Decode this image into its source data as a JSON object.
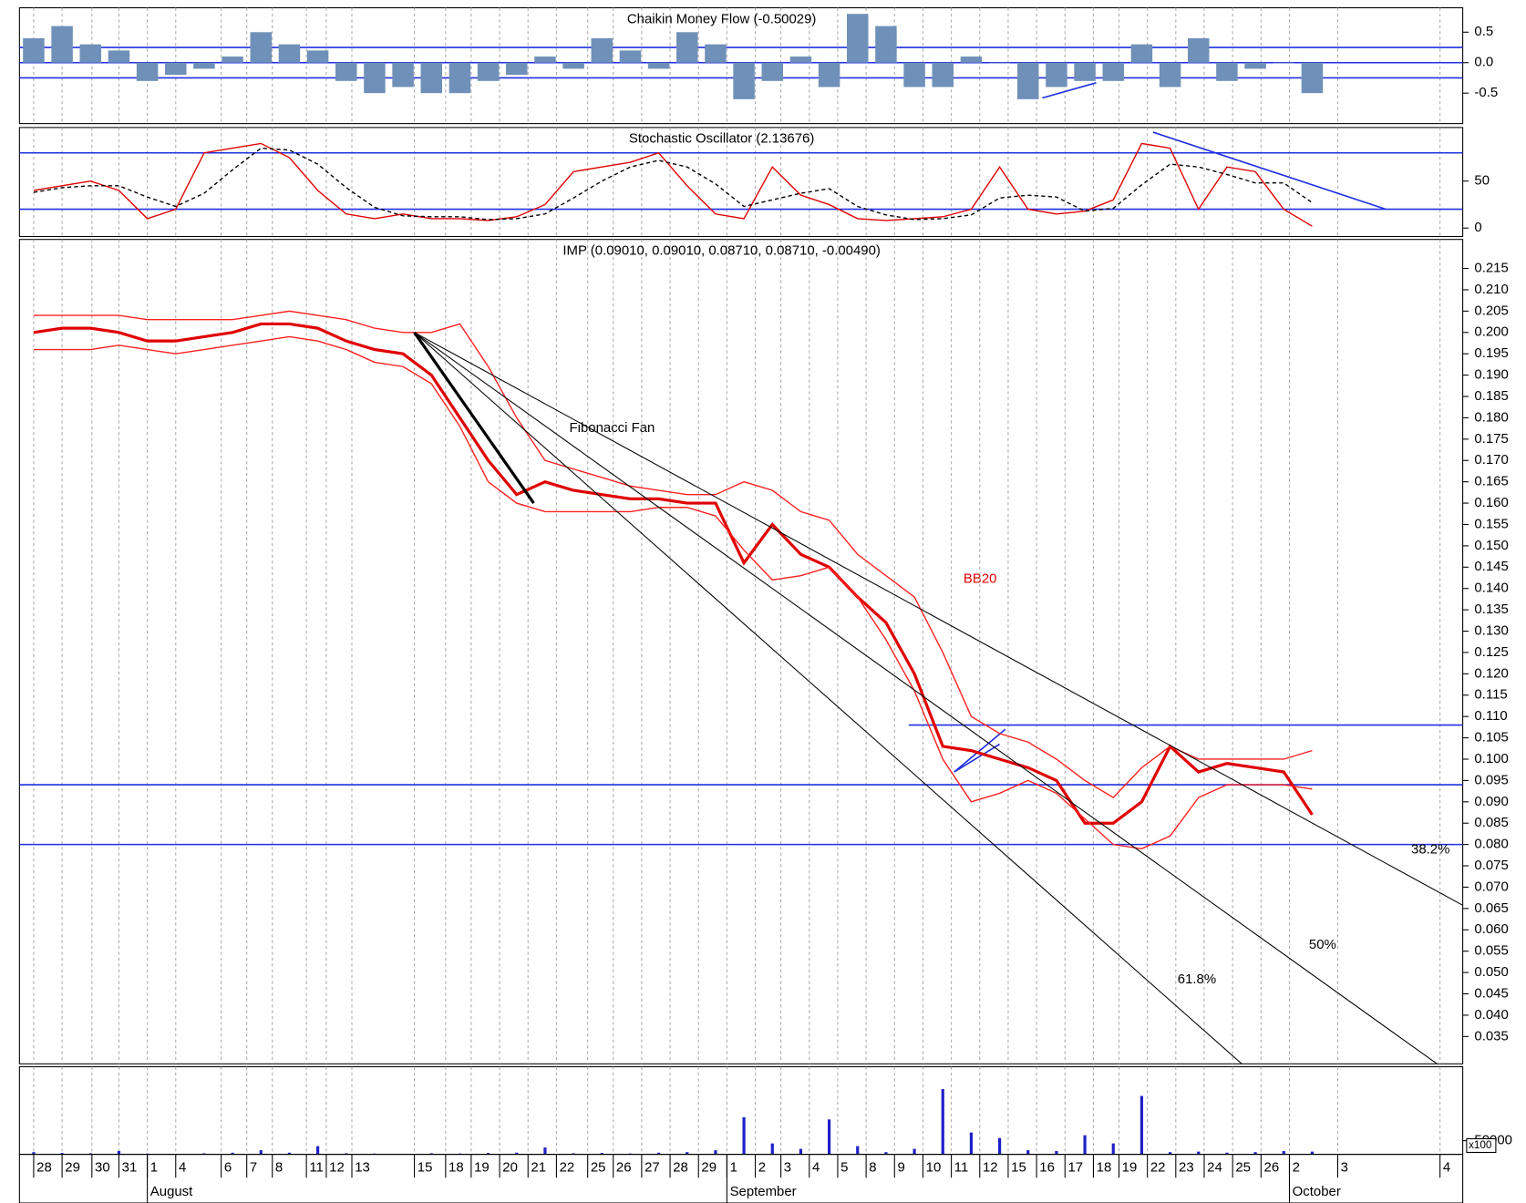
{
  "chart_data": [
    {
      "type": "bar",
      "title": "Chaikin Money Flow (-0.50029)",
      "color": "#6f90b8",
      "values": [
        0.4,
        0.6,
        0.3,
        0.2,
        -0.3,
        -0.2,
        -0.1,
        0.1,
        0.5,
        0.3,
        0.2,
        -0.3,
        -0.5,
        -0.4,
        -0.5,
        -0.5,
        -0.3,
        -0.2,
        0.1,
        -0.1,
        0.4,
        0.2,
        -0.1,
        0.5,
        0.3,
        -0.6,
        -0.3,
        0.1,
        -0.4,
        0.8,
        0.6,
        -0.4,
        -0.4,
        0.1,
        0.0,
        -0.6,
        -0.4,
        -0.3,
        -0.3,
        0.3,
        -0.4,
        0.4,
        -0.3,
        -0.1,
        0.0,
        -0.5
      ],
      "ylim": [
        -1.0,
        0.9
      ],
      "yticks": [
        0.5,
        {
          "value": 0,
          "label": "0.0"
        },
        -0.5
      ],
      "levels": [
        0.25,
        0,
        -0.25
      ],
      "level_color": "#2030e0",
      "trendlines": [
        [
          [
            35.5,
            -0.58
          ],
          [
            37.4,
            -0.33
          ]
        ]
      ]
    },
    {
      "type": "line",
      "title": "Stochastic Oscillator (2.13676)",
      "series": [
        {
          "color": "#e00000",
          "values": [
            40,
            45,
            50,
            40,
            10,
            20,
            80,
            85,
            90,
            75,
            40,
            15,
            10,
            15,
            10,
            10,
            8,
            12,
            25,
            60,
            65,
            70,
            80,
            45,
            15,
            10,
            65,
            35,
            25,
            10,
            8,
            10,
            12,
            20,
            65,
            20,
            15,
            18,
            30,
            90,
            85,
            20,
            65,
            60,
            20,
            2
          ]
        },
        {
          "color": "#000000",
          "dashed": true,
          "values": [
            38,
            43,
            45,
            45,
            33,
            23,
            37,
            62,
            85,
            83,
            68,
            43,
            22,
            13,
            12,
            12,
            9,
            10,
            15,
            32,
            50,
            65,
            72,
            65,
            47,
            23,
            30,
            37,
            42,
            23,
            14,
            9,
            10,
            14,
            32,
            35,
            33,
            18,
            21,
            46,
            68,
            65,
            57,
            48,
            48,
            27
          ]
        }
      ],
      "ylim": [
        -9,
        107
      ],
      "yticks": [
        50,
        0
      ],
      "levels": [
        80,
        20
      ],
      "level_color": "#2030e0",
      "trendlines": [
        [
          [
            39.4,
            102
          ],
          [
            47.6,
            20
          ]
        ]
      ]
    },
    {
      "type": "line",
      "title": "IMP (0.09010, 0.09010, 0.08710, 0.08710, -0.00490)",
      "series": [
        {
          "color": "#e00000",
          "width": 3,
          "values": [
            0.2,
            0.201,
            0.201,
            0.2,
            0.198,
            0.198,
            0.199,
            0.2,
            0.202,
            0.202,
            0.201,
            0.198,
            0.196,
            0.195,
            0.19,
            0.18,
            0.17,
            0.162,
            0.165,
            0.163,
            0.162,
            0.161,
            0.161,
            0.16,
            0.16,
            0.146,
            0.155,
            0.148,
            0.145,
            0.138,
            0.132,
            0.12,
            0.103,
            0.102,
            0.1,
            0.098,
            0.095,
            0.085,
            0.085,
            0.09,
            0.103,
            0.097,
            0.099,
            0.098,
            0.097,
            0.087
          ]
        },
        {
          "color": "#ff2020",
          "values": [
            0.204,
            0.204,
            0.204,
            0.204,
            0.203,
            0.203,
            0.203,
            0.203,
            0.204,
            0.205,
            0.204,
            0.203,
            0.201,
            0.2,
            0.2,
            0.202,
            0.192,
            0.18,
            0.17,
            0.168,
            0.166,
            0.164,
            0.163,
            0.162,
            0.162,
            0.165,
            0.163,
            0.158,
            0.156,
            0.148,
            0.143,
            0.138,
            0.125,
            0.11,
            0.106,
            0.104,
            0.1,
            0.095,
            0.091,
            0.098,
            0.103,
            0.1,
            0.1,
            0.1,
            0.1,
            0.102
          ]
        },
        {
          "color": "#ff2020",
          "values": [
            0.196,
            0.196,
            0.196,
            0.197,
            0.196,
            0.195,
            0.196,
            0.197,
            0.198,
            0.199,
            0.198,
            0.196,
            0.193,
            0.192,
            0.188,
            0.178,
            0.165,
            0.16,
            0.158,
            0.158,
            0.158,
            0.158,
            0.159,
            0.159,
            0.157,
            0.149,
            0.142,
            0.143,
            0.145,
            0.138,
            0.128,
            0.116,
            0.1,
            0.09,
            0.092,
            0.095,
            0.092,
            0.086,
            0.08,
            0.079,
            0.082,
            0.091,
            0.094,
            0.094,
            0.094,
            0.093
          ]
        }
      ],
      "ylim": [
        0.0286,
        0.2218
      ],
      "yticks": [
        0.215,
        {
          "value": 0.21,
          "label": "0.210"
        },
        0.205,
        {
          "value": 0.2,
          "label": "0.200"
        },
        0.195,
        {
          "value": 0.19,
          "label": "0.190"
        },
        0.185,
        {
          "value": 0.18,
          "label": "0.180"
        },
        0.175,
        {
          "value": 0.17,
          "label": "0.170"
        },
        0.165,
        {
          "value": 0.16,
          "label": "0.160"
        },
        0.155,
        {
          "value": 0.15,
          "label": "0.150"
        },
        0.145,
        {
          "value": 0.14,
          "label": "0.140"
        },
        0.135,
        {
          "value": 0.13,
          "label": "0.130"
        },
        0.125,
        {
          "value": 0.12,
          "label": "0.120"
        },
        0.115,
        {
          "value": 0.11,
          "label": "0.110"
        },
        0.105,
        {
          "value": 0.1,
          "label": "0.100"
        },
        0.095,
        {
          "value": 0.09,
          "label": "0.090"
        },
        0.085,
        {
          "value": 0.08,
          "label": "0.080"
        },
        0.075,
        {
          "value": 0.07,
          "label": "0.070"
        },
        0.065,
        {
          "value": 0.06,
          "label": "0.060"
        },
        0.055,
        {
          "value": 0.05,
          "label": "0.050"
        },
        0.045,
        {
          "value": 0.04,
          "label": "0.040"
        },
        0.035
      ],
      "levels": [
        {
          "value": 0.108,
          "from": 30.8
        },
        {
          "value": 0.094
        },
        {
          "value": 0.08
        }
      ],
      "level_color": "#2030e0",
      "trendlines": [
        [
          [
            32.4,
            0.097
          ],
          [
            34.2,
            0.107
          ]
        ],
        [
          [
            32.4,
            0.097
          ],
          [
            34.0,
            0.1035
          ]
        ]
      ],
      "fan": {
        "start": [
          13.4,
          0.2
        ],
        "end": [
          17.6,
          0.16
        ],
        "color": "#000000",
        "levels": [
          {
            "value": 38.2,
            "label": "38.2%"
          },
          {
            "value": 50,
            "label": "50%"
          },
          {
            "value": 61.8,
            "label": "61.8%"
          }
        ]
      },
      "annotations": [
        "Fibonacci Fan",
        "BB20"
      ]
    },
    {
      "type": "bar",
      "color": "#2020c8",
      "multiplier_label": "x100",
      "values": [
        8000,
        5000,
        4000,
        12000,
        3000,
        2000,
        4000,
        6000,
        15000,
        6000,
        30000,
        4000,
        3000,
        2000,
        4000,
        3000,
        5000,
        6000,
        25000,
        4000,
        5000,
        3000,
        6000,
        8000,
        15000,
        136000,
        40000,
        20000,
        128000,
        30000,
        8000,
        20000,
        239000,
        80000,
        60000,
        15000,
        12000,
        70000,
        40000,
        214000,
        8000,
        10000,
        6000,
        8000,
        12000,
        10000
      ],
      "ylim": [
        0,
        321000
      ],
      "yticks": [
        50000
      ],
      "xlim": [
        -0.5,
        50.3
      ],
      "xticks": [
        {
          "value": 0,
          "label": "28"
        },
        {
          "value": 1,
          "label": "29"
        },
        {
          "value": 2.05,
          "label": "30"
        },
        {
          "value": 3,
          "label": "31"
        },
        {
          "value": 4,
          "label": "1"
        },
        {
          "value": 5,
          "label": "4"
        },
        {
          "value": 6.6,
          "label": "6"
        },
        {
          "value": 7.5,
          "label": "7"
        },
        {
          "value": 8.4,
          "label": "8"
        },
        {
          "value": 9.6,
          "label": "11"
        },
        {
          "value": 10.3,
          "label": "12"
        },
        {
          "value": 11.2,
          "label": "13"
        },
        {
          "value": 13.4,
          "label": "15"
        },
        {
          "value": 14.5,
          "label": "18"
        },
        {
          "value": 15.4,
          "label": "19"
        },
        {
          "value": 16.4,
          "label": "20"
        },
        {
          "value": 17.4,
          "label": "21"
        },
        {
          "value": 18.4,
          "label": "22"
        },
        {
          "value": 19.5,
          "label": "25"
        },
        {
          "value": 20.4,
          "label": "26"
        },
        {
          "value": 21.4,
          "label": "27"
        },
        {
          "value": 22.4,
          "label": "28"
        },
        {
          "value": 23.4,
          "label": "29"
        },
        {
          "value": 24.4,
          "label": "1"
        },
        {
          "value": 25.4,
          "label": "2"
        },
        {
          "value": 26.3,
          "label": "3"
        },
        {
          "value": 27.3,
          "label": "4"
        },
        {
          "value": 28.3,
          "label": "5"
        },
        {
          "value": 29.3,
          "label": "8"
        },
        {
          "value": 30.3,
          "label": "9"
        },
        {
          "value": 31.3,
          "label": "10"
        },
        {
          "value": 32.3,
          "label": "11"
        },
        {
          "value": 33.3,
          "label": "12"
        },
        {
          "value": 34.3,
          "label": "15"
        },
        {
          "value": 35.3,
          "label": "16"
        },
        {
          "value": 36.3,
          "label": "17"
        },
        {
          "value": 37.3,
          "label": "18"
        },
        {
          "value": 38.2,
          "label": "19"
        },
        {
          "value": 39.2,
          "label": "22"
        },
        {
          "value": 40.2,
          "label": "23"
        },
        {
          "value": 41.2,
          "label": "24"
        },
        {
          "value": 42.2,
          "label": "25"
        },
        {
          "value": 43.2,
          "label": "26"
        },
        {
          "value": 44.2,
          "label": "2"
        },
        {
          "value": 45.9,
          "label": "3"
        },
        {
          "value": 49.5,
          "label": "4"
        }
      ],
      "months": [
        {
          "value": 4,
          "label": "August"
        },
        {
          "value": 24.4,
          "label": "September"
        },
        {
          "value": 44.2,
          "label": "October"
        }
      ]
    }
  ]
}
